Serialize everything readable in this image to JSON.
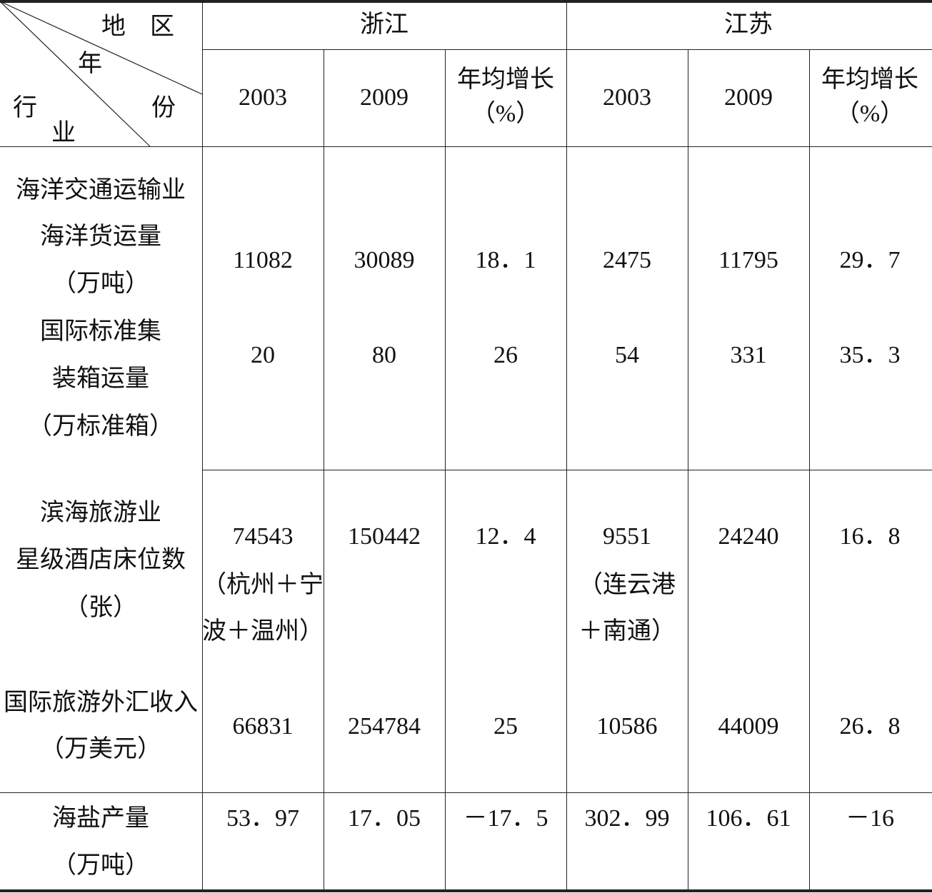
{
  "corner": {
    "region": "地　区",
    "year": "年",
    "industry_1": "行",
    "year_2": "份",
    "industry_2": "业"
  },
  "regions": [
    "浙江",
    "江苏"
  ],
  "subheaders": [
    "2003",
    "2009",
    "年均增长",
    "（%）",
    "2003",
    "2009",
    "年均增长",
    "（%）"
  ],
  "rows": {
    "transport": {
      "category": "海洋交通运输业",
      "cargo_label": [
        "海洋货运量",
        "（万吨）"
      ],
      "cargo_values": [
        "11082",
        "30089",
        "18．1",
        "2475",
        "11795",
        "29．7"
      ],
      "container_label": [
        "国际标准集",
        "装箱运量",
        "（万标准箱）"
      ],
      "container_values": [
        "20",
        "80",
        "26",
        "54",
        "331",
        "35．3"
      ]
    },
    "tourism": {
      "category": "滨海旅游业",
      "beds_label": [
        "星级酒店床位数",
        "（张）"
      ],
      "beds_values": [
        "74543",
        "150442",
        "12．4",
        "9551",
        "24240",
        "16．8"
      ],
      "beds_notes": {
        "zhejiang": [
          "（杭州＋宁",
          "波＋温州）"
        ],
        "jiangsu": [
          "（连云港",
          "＋南通）"
        ]
      },
      "forex_label": [
        "国际旅游外汇收入",
        "（万美元）"
      ],
      "forex_values": [
        "66831",
        "254784",
        "25",
        "10586",
        "44009",
        "26．8"
      ]
    },
    "salt": {
      "label": [
        "海盐产量",
        "（万吨）"
      ],
      "values": [
        "53．97",
        "17．05",
        "－17．5",
        "302．99",
        "106．61",
        "－16"
      ]
    }
  }
}
